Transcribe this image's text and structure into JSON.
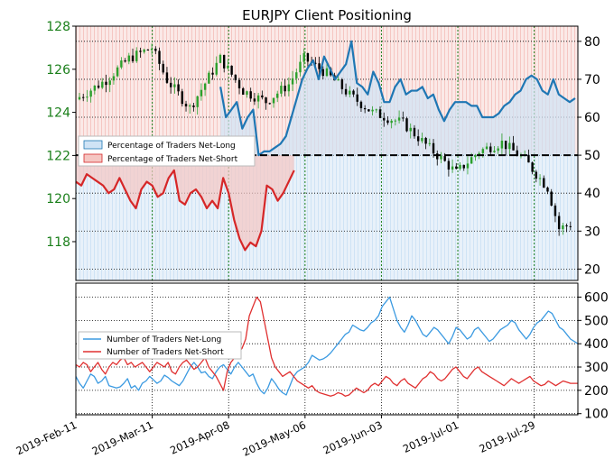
{
  "colors": {
    "long": "#1f77b4",
    "long_fill": "#cfe3f5",
    "short": "#d62728",
    "short_fill": "#f5c6c2",
    "count_long": "#3b9ae1",
    "count_short": "#e03030",
    "candle_up": "#2ca02c",
    "candle_down": "#000000",
    "left_axis": "#1a7f1a"
  },
  "chart_data": [
    {
      "type": "line",
      "title": "EURJPY Client Positioning",
      "x_ticks": [
        "2019-Feb-11",
        "2019-Mar-11",
        "2019-Apr-08",
        "2019-May-06",
        "2019-Jun-03",
        "2019-Jul-01",
        "2019-Jul-29"
      ],
      "left_axis": {
        "ticks": [
          118,
          120,
          122,
          124,
          126,
          128
        ],
        "range": [
          116.2,
          128.0
        ]
      },
      "right_axis": {
        "ticks": [
          20,
          30,
          40,
          50,
          60,
          70,
          80
        ],
        "range": [
          17,
          84
        ]
      },
      "neutral_level": 50,
      "legend": [
        "Percentage of Traders Net-Long",
        "Percentage of Traders Net-Short"
      ],
      "legend_position": "center-left",
      "grid": true,
      "series": [
        {
          "name": "Percentage of Traders Net-Long",
          "axis": "right",
          "x": [
            "2019-Apr-05",
            "2019-Apr-07",
            "2019-Apr-09",
            "2019-Apr-11",
            "2019-Apr-13",
            "2019-Apr-15",
            "2019-Apr-17",
            "2019-Apr-19",
            "2019-Apr-21",
            "2019-Apr-23",
            "2019-Apr-25",
            "2019-Apr-27",
            "2019-Apr-29",
            "2019-May-01",
            "2019-May-03",
            "2019-May-05",
            "2019-May-07",
            "2019-May-09",
            "2019-May-11",
            "2019-May-13",
            "2019-May-15",
            "2019-May-17",
            "2019-May-19",
            "2019-May-21",
            "2019-May-23",
            "2019-May-25",
            "2019-May-27",
            "2019-May-29",
            "2019-May-31",
            "2019-Jun-02",
            "2019-Jun-04",
            "2019-Jun-06",
            "2019-Jun-08",
            "2019-Jun-10",
            "2019-Jun-12",
            "2019-Jun-14",
            "2019-Jun-16",
            "2019-Jun-18",
            "2019-Jun-20",
            "2019-Jun-22",
            "2019-Jun-24",
            "2019-Jun-26",
            "2019-Jun-28",
            "2019-Jun-30",
            "2019-Jul-02",
            "2019-Jul-04",
            "2019-Jul-06",
            "2019-Jul-08",
            "2019-Jul-10",
            "2019-Jul-12",
            "2019-Jul-14",
            "2019-Jul-16",
            "2019-Jul-18",
            "2019-Jul-20",
            "2019-Jul-22",
            "2019-Jul-24",
            "2019-Jul-26",
            "2019-Jul-28",
            "2019-Jul-30",
            "2019-Aug-01",
            "2019-Aug-03",
            "2019-Aug-05",
            "2019-Aug-07",
            "2019-Aug-09",
            "2019-Aug-11",
            "2019-Aug-13"
          ],
          "values": [
            68,
            60,
            62,
            64,
            57,
            60,
            62,
            50,
            51,
            51,
            52,
            53,
            55,
            60,
            65,
            70,
            73,
            75,
            70,
            76,
            73,
            70,
            72,
            74,
            80,
            69,
            68,
            66,
            72,
            69,
            64,
            64,
            68,
            70,
            66,
            67,
            67,
            68,
            65,
            66,
            62,
            59,
            62,
            64,
            64,
            64,
            63,
            63,
            60,
            60,
            60,
            61,
            63,
            64,
            66,
            67,
            70,
            71,
            70,
            67,
            66,
            70,
            66,
            65,
            64,
            65
          ]
        },
        {
          "name": "Percentage of Traders Net-Short",
          "axis": "right",
          "x": [
            "2019-Feb-11",
            "2019-Feb-13",
            "2019-Feb-15",
            "2019-Feb-17",
            "2019-Feb-19",
            "2019-Feb-21",
            "2019-Feb-23",
            "2019-Feb-25",
            "2019-Feb-27",
            "2019-Mar-01",
            "2019-Mar-03",
            "2019-Mar-05",
            "2019-Mar-07",
            "2019-Mar-09",
            "2019-Mar-11",
            "2019-Mar-13",
            "2019-Mar-15",
            "2019-Mar-17",
            "2019-Mar-19",
            "2019-Mar-21",
            "2019-Mar-23",
            "2019-Mar-25",
            "2019-Mar-27",
            "2019-Mar-29",
            "2019-Mar-31",
            "2019-Apr-02",
            "2019-Apr-04",
            "2019-Apr-06",
            "2019-Apr-08",
            "2019-Apr-10",
            "2019-Apr-12",
            "2019-Apr-14",
            "2019-Apr-16",
            "2019-Apr-18",
            "2019-Apr-20",
            "2019-Apr-22",
            "2019-Apr-24",
            "2019-Apr-26",
            "2019-Apr-28",
            "2019-Apr-30",
            "2019-May-02"
          ],
          "values": [
            43,
            42,
            45,
            44,
            43,
            42,
            40,
            41,
            44,
            41,
            38,
            36,
            41,
            43,
            42,
            39,
            40,
            44,
            46,
            38,
            37,
            40,
            41,
            39,
            36,
            38,
            36,
            44,
            40,
            33,
            28,
            25,
            27,
            26,
            30,
            42,
            41,
            38,
            40,
            43,
            46
          ]
        }
      ]
    },
    {
      "type": "line",
      "x_ticks": [
        "2019-Feb-11",
        "2019-Mar-11",
        "2019-Apr-08",
        "2019-May-06",
        "2019-Jun-03",
        "2019-Jul-01",
        "2019-Jul-29"
      ],
      "right_axis": {
        "ticks": [
          100,
          200,
          300,
          400,
          500,
          600
        ],
        "range": [
          95,
          660
        ]
      },
      "legend": [
        "Number of Traders Net-Long",
        "Number of Traders Net-Short"
      ],
      "legend_position": "center-left",
      "grid": true,
      "series": [
        {
          "name": "Number of Traders Net-Long",
          "values": [
            260,
            230,
            210,
            240,
            270,
            260,
            230,
            240,
            260,
            220,
            215,
            210,
            215,
            230,
            250,
            210,
            220,
            200,
            230,
            240,
            260,
            245,
            230,
            240,
            265,
            255,
            240,
            230,
            220,
            240,
            270,
            300,
            320,
            300,
            275,
            280,
            260,
            250,
            280,
            300,
            310,
            290,
            270,
            300,
            320,
            300,
            280,
            260,
            270,
            230,
            200,
            185,
            210,
            250,
            230,
            205,
            190,
            180,
            220,
            260,
            280,
            290,
            300,
            320,
            350,
            340,
            330,
            335,
            345,
            360,
            380,
            400,
            420,
            440,
            450,
            480,
            470,
            460,
            455,
            470,
            490,
            500,
            520,
            560,
            580,
            600,
            550,
            500,
            470,
            450,
            480,
            520,
            500,
            470,
            440,
            430,
            450,
            470,
            460,
            440,
            420,
            400,
            430,
            470,
            460,
            440,
            420,
            430,
            460,
            470,
            450,
            430,
            410,
            420,
            440,
            460,
            470,
            480,
            500,
            490,
            460,
            440,
            420,
            440,
            470,
            490,
            500,
            520,
            540,
            530,
            500,
            470,
            460,
            440,
            420,
            410,
            400
          ]
        },
        {
          "name": "Number of Traders Net-Short",
          "values": [
            310,
            300,
            320,
            310,
            280,
            300,
            320,
            290,
            270,
            300,
            320,
            310,
            330,
            340,
            310,
            320,
            300,
            310,
            320,
            300,
            280,
            300,
            320,
            310,
            300,
            320,
            280,
            270,
            300,
            320,
            330,
            310,
            290,
            300,
            320,
            340,
            300,
            280,
            260,
            230,
            200,
            280,
            320,
            340,
            360,
            380,
            420,
            520,
            560,
            600,
            580,
            500,
            420,
            340,
            300,
            280,
            260,
            270,
            280,
            260,
            240,
            230,
            220,
            210,
            220,
            200,
            190,
            185,
            180,
            175,
            180,
            190,
            185,
            175,
            180,
            195,
            210,
            200,
            190,
            200,
            220,
            230,
            220,
            240,
            260,
            250,
            230,
            220,
            240,
            250,
            230,
            220,
            210,
            230,
            250,
            260,
            280,
            270,
            250,
            240,
            250,
            270,
            290,
            300,
            280,
            260,
            250,
            270,
            290,
            300,
            280,
            270,
            260,
            250,
            240,
            230,
            220,
            235,
            250,
            240,
            230,
            240,
            250,
            260,
            240,
            230,
            220,
            225,
            240,
            230,
            220,
            230,
            240,
            235,
            230,
            230,
            230
          ]
        }
      ]
    }
  ]
}
